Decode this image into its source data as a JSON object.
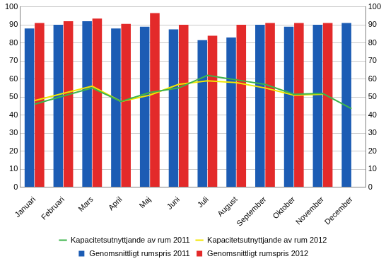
{
  "chart_data": {
    "type": "bar",
    "categories": [
      "Januari",
      "Februari",
      "Mars",
      "April",
      "Maj",
      "Juni",
      "Juli",
      "August",
      "September",
      "Oktober",
      "November",
      "December"
    ],
    "series": [
      {
        "name": "Genomsnittligt rumspris 2011",
        "type": "bar",
        "color": "#1c5cb4",
        "values": [
          88,
          90,
          92,
          88,
          89,
          87.5,
          81.5,
          83,
          90,
          89,
          90,
          91
        ]
      },
      {
        "name": "Genomsnittligt rumspris 2012",
        "type": "bar",
        "color": "#e32a2a",
        "values": [
          91,
          92,
          93.5,
          90.5,
          96.5,
          90,
          84,
          90,
          91,
          91,
          91,
          null
        ]
      },
      {
        "name": "Kapacitetsutnyttjande av rum 2011",
        "type": "line",
        "color": "#3cb44b",
        "marker": "none",
        "axis": "y2",
        "values": [
          46,
          50.5,
          55,
          47.5,
          52.5,
          55,
          62,
          59.5,
          57,
          51.5,
          52,
          43.5
        ]
      },
      {
        "name": "Kapacitetsutnyttjande av rum 2012",
        "type": "line",
        "color": "#f2e600",
        "marker": "none",
        "axis": "y2",
        "values": [
          48,
          52,
          56,
          47.5,
          51,
          57,
          59,
          58,
          55,
          51,
          51.5,
          null
        ]
      }
    ],
    "ylim": [
      0,
      100
    ],
    "yticks": [
      0,
      10,
      20,
      30,
      40,
      50,
      60,
      70,
      80,
      90,
      100
    ],
    "y2lim": [
      0,
      100
    ],
    "y2ticks": [
      0,
      10,
      20,
      30,
      40,
      50,
      60,
      70,
      80,
      90,
      100
    ],
    "grid": true,
    "legend": "bottom"
  }
}
